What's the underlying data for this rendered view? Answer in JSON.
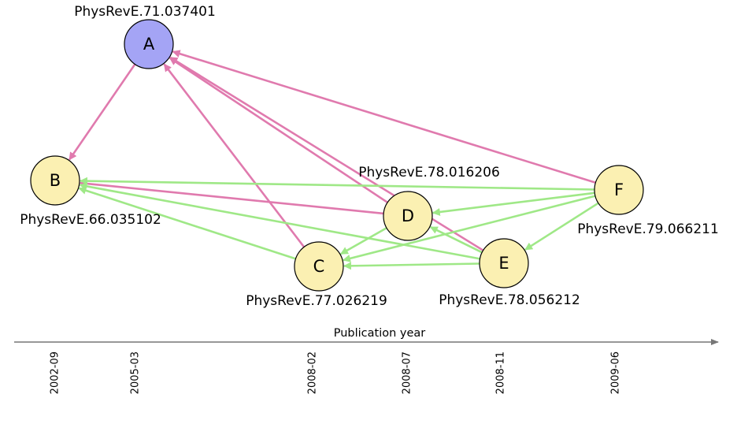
{
  "axis": {
    "title": "Publication year"
  },
  "ticks": [
    {
      "id": "t2002",
      "label": "2002-09"
    },
    {
      "id": "t2005",
      "label": "2005-03"
    },
    {
      "id": "t2008a",
      "label": "2008-02"
    },
    {
      "id": "t2008b",
      "label": "2008-07"
    },
    {
      "id": "t2008c",
      "label": "2008-11"
    },
    {
      "id": "t2009",
      "label": "2009-06"
    }
  ],
  "nodes": [
    {
      "id": "A",
      "letter": "A",
      "label": "PhysRevE.71.037401",
      "fill": "#a4a4f5"
    },
    {
      "id": "B",
      "letter": "B",
      "label": "PhysRevE.66.035102",
      "fill": "#fbf0b2"
    },
    {
      "id": "C",
      "letter": "C",
      "label": "PhysRevE.77.026219",
      "fill": "#fbf0b2"
    },
    {
      "id": "D",
      "letter": "D",
      "label": "PhysRevE.78.016206",
      "fill": "#fbf0b2"
    },
    {
      "id": "E",
      "letter": "E",
      "label": "PhysRevE.78.056212",
      "fill": "#fbf0b2"
    },
    {
      "id": "F",
      "letter": "F",
      "label": "PhysRevE.79.066211",
      "fill": "#fbf0b2"
    }
  ],
  "edges": [
    {
      "from": "A",
      "to": "B",
      "kind": "pink"
    },
    {
      "from": "F",
      "to": "A",
      "kind": "pink"
    },
    {
      "from": "D",
      "to": "A",
      "kind": "pink"
    },
    {
      "from": "E",
      "to": "A",
      "kind": "pink"
    },
    {
      "from": "C",
      "to": "A",
      "kind": "pink"
    },
    {
      "from": "D",
      "to": "B",
      "kind": "pink"
    },
    {
      "from": "F",
      "to": "B",
      "kind": "green"
    },
    {
      "from": "E",
      "to": "B",
      "kind": "green"
    },
    {
      "from": "C",
      "to": "B",
      "kind": "green"
    },
    {
      "from": "F",
      "to": "D",
      "kind": "green"
    },
    {
      "from": "F",
      "to": "C",
      "kind": "green"
    },
    {
      "from": "F",
      "to": "E",
      "kind": "green"
    },
    {
      "from": "E",
      "to": "D",
      "kind": "green"
    },
    {
      "from": "E",
      "to": "C",
      "kind": "green"
    },
    {
      "from": "D",
      "to": "C",
      "kind": "green"
    }
  ],
  "colors": {
    "pink": "#e07aae",
    "green": "#9fe887",
    "axis": "#777777",
    "nodeStroke": "#000000"
  }
}
